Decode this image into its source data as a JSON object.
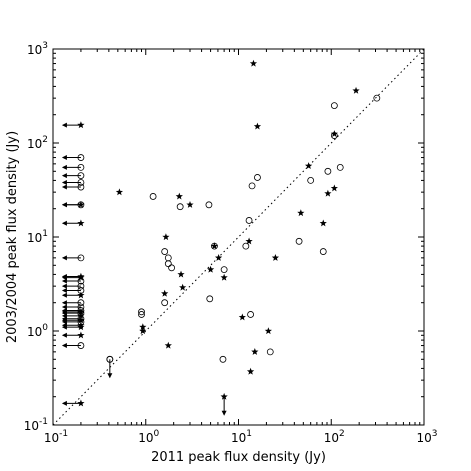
{
  "chart_data": {
    "type": "scatter",
    "xlabel": "2011 peak flux density (Jy)",
    "ylabel": "2003/2004 peak flux density (Jy)",
    "xscale": "log",
    "yscale": "log",
    "xlim": [
      0.1,
      1000
    ],
    "ylim": [
      0.1,
      1000
    ],
    "x_ticks": [
      {
        "value": 0.1,
        "base": "10",
        "exp": "-1"
      },
      {
        "value": 1,
        "base": "10",
        "exp": "0"
      },
      {
        "value": 10,
        "base": "10",
        "exp": "1"
      },
      {
        "value": 100,
        "base": "10",
        "exp": "2"
      },
      {
        "value": 1000,
        "base": "10",
        "exp": "3"
      }
    ],
    "y_ticks": [
      {
        "value": 0.1,
        "base": "10",
        "exp": "-1"
      },
      {
        "value": 1,
        "base": "10",
        "exp": "0"
      },
      {
        "value": 10,
        "base": "10",
        "exp": "1"
      },
      {
        "value": 100,
        "base": "10",
        "exp": "2"
      },
      {
        "value": 1000,
        "base": "10",
        "exp": "3"
      }
    ],
    "grid": false,
    "reference_line": {
      "style": "dotted",
      "relation": "y = x"
    },
    "series": [
      {
        "marker": "star",
        "points": [
          [
            0.52,
            30
          ],
          [
            0.93,
            1.1
          ],
          [
            0.93,
            1.0
          ],
          [
            1.6,
            2.5
          ],
          [
            1.65,
            10
          ],
          [
            1.75,
            0.7
          ],
          [
            2.3,
            27
          ],
          [
            2.4,
            4
          ],
          [
            2.5,
            2.9
          ],
          [
            3.0,
            22
          ],
          [
            5.0,
            4.5
          ],
          [
            5.5,
            8
          ],
          [
            6.1,
            6
          ],
          [
            7.0,
            3.7
          ],
          [
            11,
            1.4
          ],
          [
            13,
            9
          ],
          [
            13.5,
            0.37
          ],
          [
            14.5,
            700
          ],
          [
            15,
            0.6
          ],
          [
            16,
            150
          ],
          [
            21,
            1.0
          ],
          [
            25,
            6
          ],
          [
            47,
            18
          ],
          [
            57,
            57
          ],
          [
            82,
            14
          ],
          [
            92,
            29
          ],
          [
            108,
            33
          ],
          [
            108,
            125
          ],
          [
            185,
            360
          ]
        ],
        "color": "#000000"
      },
      {
        "marker": "open-circle",
        "points": [
          [
            0.41,
            0.5
          ],
          [
            0.9,
            1.6
          ],
          [
            0.9,
            1.5
          ],
          [
            1.2,
            27
          ],
          [
            1.6,
            7
          ],
          [
            1.6,
            2.0
          ],
          [
            1.75,
            6
          ],
          [
            1.75,
            5.2
          ],
          [
            1.9,
            4.7
          ],
          [
            2.35,
            21
          ],
          [
            4.8,
            22
          ],
          [
            4.9,
            2.2
          ],
          [
            5.5,
            8
          ],
          [
            6.8,
            0.5
          ],
          [
            7.0,
            4.5
          ],
          [
            12,
            8
          ],
          [
            13,
            15
          ],
          [
            13.5,
            1.5
          ],
          [
            14,
            35
          ],
          [
            16,
            43
          ],
          [
            22,
            0.6
          ],
          [
            45,
            9
          ],
          [
            60,
            40
          ],
          [
            82,
            7
          ],
          [
            92,
            50
          ],
          [
            108,
            120
          ],
          [
            108,
            250
          ],
          [
            125,
            55
          ],
          [
            310,
            300
          ]
        ],
        "color": "#000000"
      }
    ],
    "upper_limits_x": {
      "x_value": 0.2,
      "star_y": [
        0.17,
        0.9,
        1.1,
        1.15,
        1.3,
        1.45,
        1.6,
        2.4,
        3.7,
        3.8,
        14,
        22,
        155
      ],
      "circle_y": [
        0.7,
        1.25,
        1.35,
        1.55,
        1.65,
        1.8,
        2.0,
        2.7,
        3.0,
        3.4,
        6,
        22,
        34,
        38,
        45,
        55,
        70
      ]
    },
    "upper_limits_y": {
      "star_x": [
        7.0
      ],
      "star_y": [
        0.2
      ],
      "circle_x": [
        0.41
      ],
      "circle_y": [
        0.5
      ]
    }
  }
}
